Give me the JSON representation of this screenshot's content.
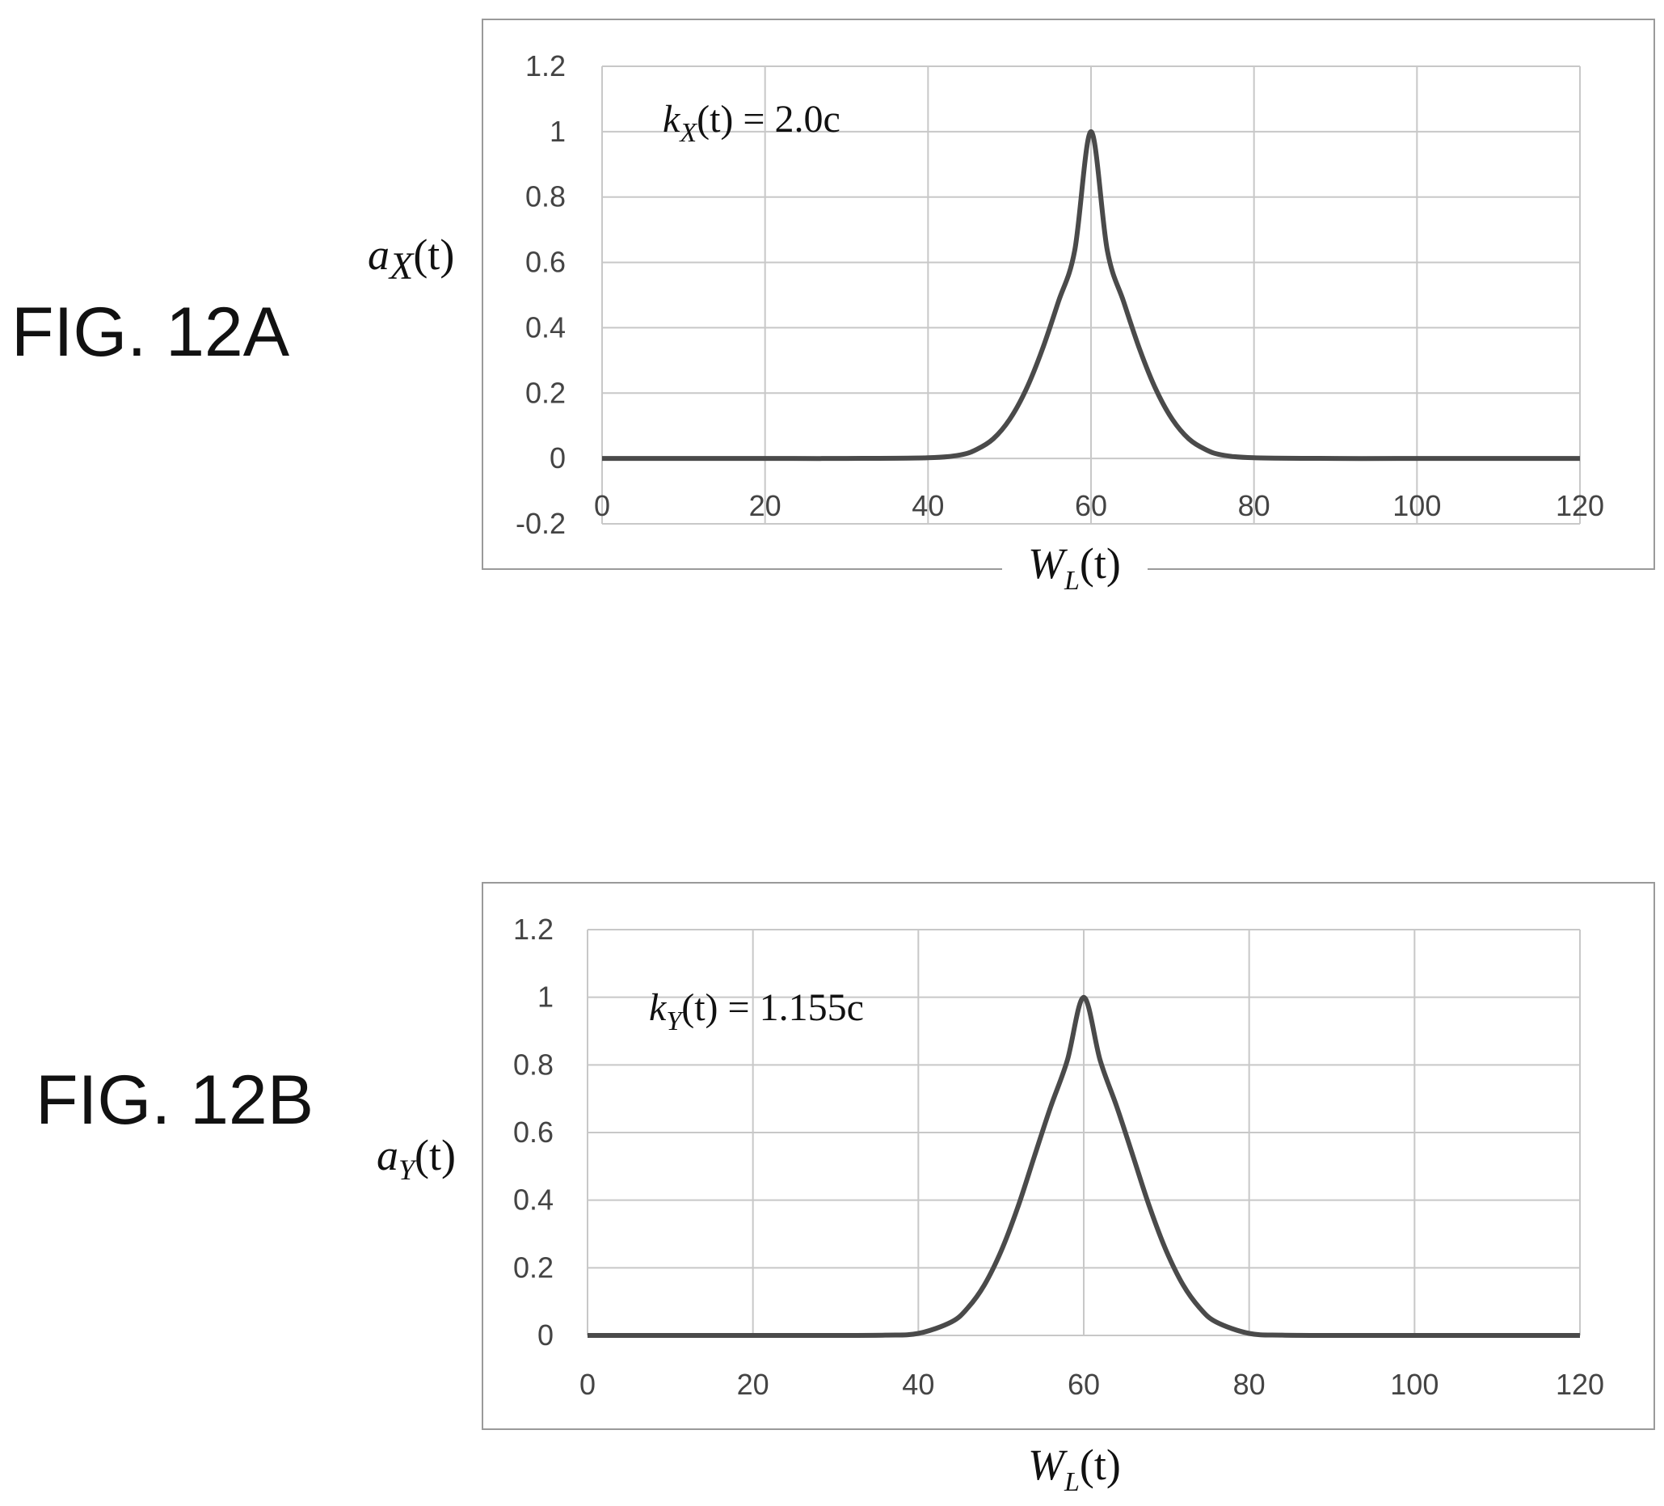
{
  "figures": [
    {
      "figure_label": "FIG. 12A",
      "ylabel": {
        "base": "a",
        "sub": "X",
        "arg": "(t)"
      },
      "xlabel": {
        "base": "W",
        "sub": "L",
        "arg": "(t)"
      },
      "annotation": {
        "base": "k",
        "sub": "X",
        "arg": "(t)",
        "rhs": " = 2.0c"
      }
    },
    {
      "figure_label": "FIG. 12B",
      "ylabel": {
        "base": "a",
        "sub": "Y",
        "arg": "(t)"
      },
      "xlabel": {
        "base": "W",
        "sub": "L",
        "arg": "(t)"
      },
      "annotation": {
        "base": "k",
        "sub": "Y",
        "arg": "(t)",
        "rhs": " = 1.155c"
      }
    }
  ],
  "chart_data": [
    {
      "type": "line",
      "title": "",
      "xlabel": "W_L(t)",
      "ylabel": "a_X(t)",
      "xlim": [
        0,
        120
      ],
      "ylim": [
        -0.2,
        1.2
      ],
      "xticks": [
        "0",
        "20",
        "40",
        "60",
        "80",
        "100",
        "120"
      ],
      "yticks": [
        "-0.2",
        "0",
        "0.2",
        "0.4",
        "0.6",
        "0.8",
        "1",
        "1.2"
      ],
      "grid": true,
      "line_color": "#4a4a4a",
      "series": [
        {
          "x": [
            0,
            10,
            20,
            30,
            40,
            44,
            46,
            48,
            50,
            52,
            54,
            56,
            58,
            60,
            62,
            64,
            66,
            68,
            70,
            72,
            74,
            76,
            80,
            90,
            100,
            110,
            120
          ],
          "values": [
            0,
            0,
            0,
            0,
            0.002,
            0.011,
            0.028,
            0.06,
            0.119,
            0.209,
            0.332,
            0.48,
            0.636,
            1.0,
            0.636,
            0.48,
            0.332,
            0.209,
            0.119,
            0.06,
            0.028,
            0.011,
            0.002,
            0,
            0,
            0,
            0
          ]
        }
      ]
    },
    {
      "type": "line",
      "title": "",
      "xlabel": "W_L(t)",
      "ylabel": "a_Y(t)",
      "xlim": [
        0,
        120
      ],
      "ylim": [
        0,
        1.2
      ],
      "xticks": [
        "0",
        "20",
        "40",
        "60",
        "80",
        "100",
        "120"
      ],
      "yticks": [
        "0",
        "0.2",
        "0.4",
        "0.6",
        "0.8",
        "1",
        "1.2"
      ],
      "grid": true,
      "line_color": "#4a4a4a",
      "series": [
        {
          "x": [
            0,
            10,
            20,
            30,
            36,
            40,
            44,
            46,
            48,
            50,
            52,
            54,
            56,
            58,
            60,
            62,
            64,
            66,
            68,
            70,
            72,
            74,
            76,
            80,
            84,
            90,
            100,
            110,
            120
          ],
          "values": [
            0,
            0,
            0,
            0,
            0.001,
            0.006,
            0.04,
            0.082,
            0.15,
            0.249,
            0.377,
            0.527,
            0.676,
            0.812,
            1.0,
            0.812,
            0.676,
            0.527,
            0.377,
            0.249,
            0.15,
            0.082,
            0.04,
            0.006,
            0.001,
            0,
            0,
            0,
            0
          ]
        }
      ]
    }
  ]
}
